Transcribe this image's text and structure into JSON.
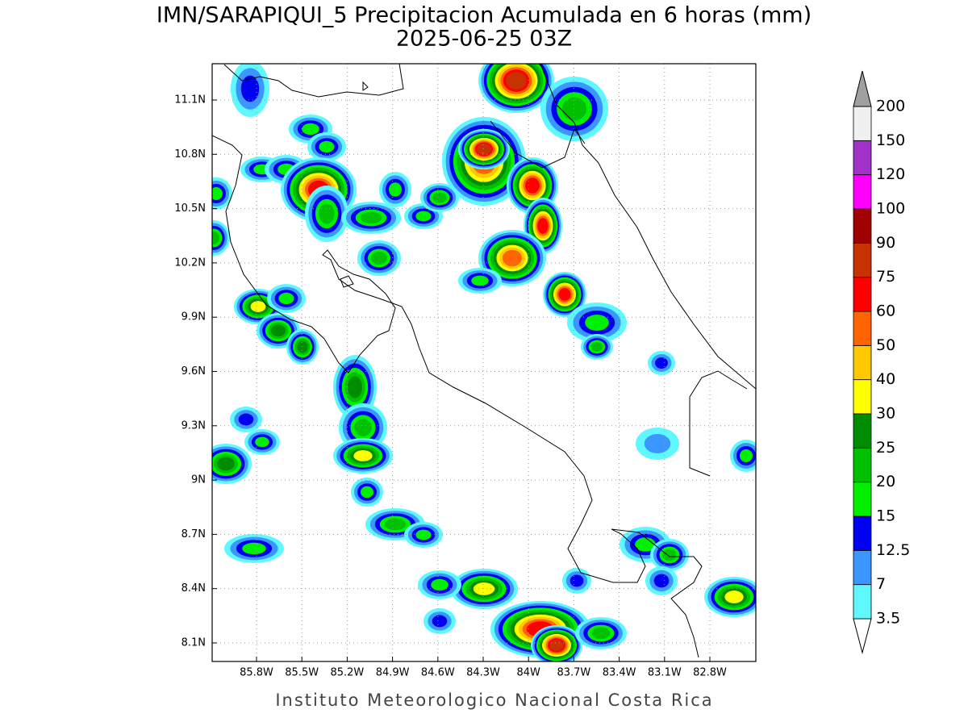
{
  "title": "IMN/SARAPIQUI_5 Precipitacion Acumulada en 6 horas (mm)",
  "subtitle": "2025-06-25 03Z",
  "footer": "Instituto Meteorologico Nacional Costa Rica",
  "map": {
    "lon_labels": [
      "85.8W",
      "85.5W",
      "85.2W",
      "84.9W",
      "84.6W",
      "84.3W",
      "84W",
      "83.7W",
      "83.4W",
      "83.1W",
      "82.8W"
    ],
    "lat_labels": [
      "11.1N",
      "10.8N",
      "10.5N",
      "10.2N",
      "9.9N",
      "9.6N",
      "9.3N",
      "9N",
      "8.7N",
      "8.4N",
      "8.1N"
    ]
  },
  "colorbar": {
    "levels": [
      3.5,
      7,
      12.5,
      15,
      20,
      25,
      30,
      40,
      50,
      60,
      75,
      90,
      100,
      120,
      150,
      200
    ],
    "colors": [
      "#60f8ff",
      "#3c96ff",
      "#0000f0",
      "#00f000",
      "#00c000",
      "#008c00",
      "#ffff00",
      "#ffc800",
      "#ff6400",
      "#ff0000",
      "#c83200",
      "#a00000",
      "#ff00ff",
      "#a032c8",
      "#f0f0f0"
    ],
    "under_color": "#ffffff",
    "over_color": "#a0a0a0"
  }
}
